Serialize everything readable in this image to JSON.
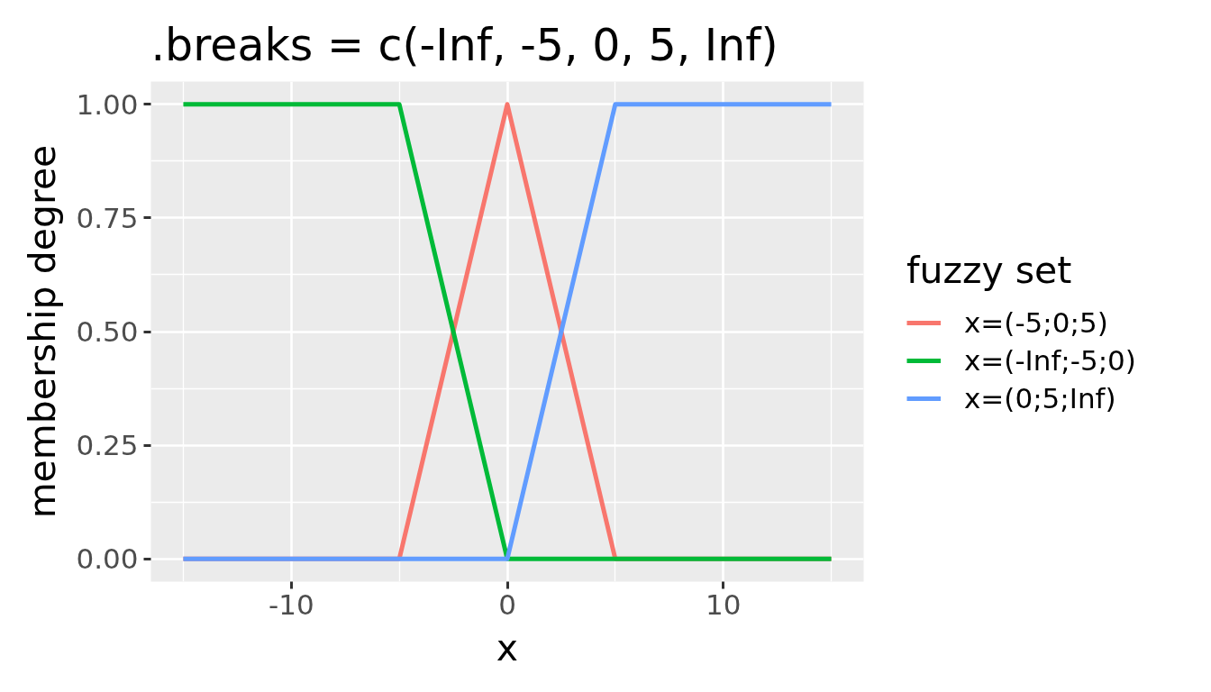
{
  "chart_data": {
    "type": "line",
    "title": ".breaks = c(-Inf, -5, 0, 5, Inf)",
    "xlabel": "x",
    "ylabel": "membership degree",
    "legend_title": "fuzzy set",
    "series": [
      {
        "name": "x=(-5;0;5)",
        "color": "#f8766d",
        "x": [
          -15,
          -5,
          0,
          5,
          15
        ],
        "values": [
          0,
          0,
          1,
          0,
          0
        ]
      },
      {
        "name": "x=(-Inf;-5;0)",
        "color": "#00ba38",
        "x": [
          -15,
          -5,
          0,
          15
        ],
        "values": [
          1,
          1,
          0,
          0
        ]
      },
      {
        "name": "x=(0;5;Inf)",
        "color": "#619cff",
        "x": [
          -15,
          0,
          5,
          15
        ],
        "values": [
          0,
          0,
          1,
          1
        ]
      }
    ],
    "xlim": [
      -16.5,
      16.5
    ],
    "ylim": [
      -0.05,
      1.05
    ],
    "xticks": [
      -10,
      0,
      10
    ],
    "yticks": [
      {
        "value": 0,
        "label": "0.00"
      },
      {
        "value": 0.25,
        "label": "0.25"
      },
      {
        "value": 0.5,
        "label": "0.50"
      },
      {
        "value": 0.75,
        "label": "0.75"
      },
      {
        "value": 1,
        "label": "1.00"
      }
    ],
    "grid": true,
    "legend": "right"
  }
}
